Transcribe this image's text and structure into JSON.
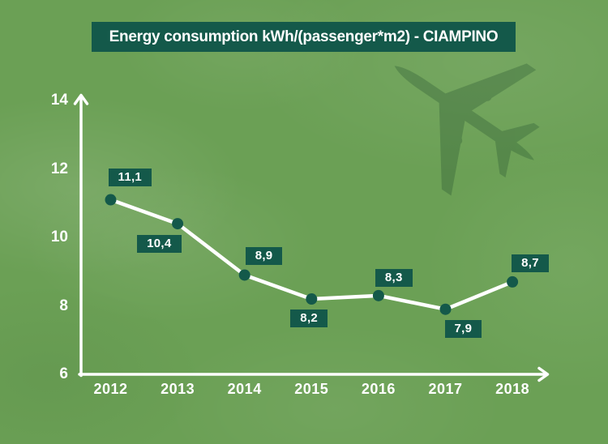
{
  "title_bar": {
    "text": "Energy consumption kWh/(passenger*m2)  - CIAMPINO"
  },
  "colors": {
    "background": "#6BA055",
    "accent_dark_green": "#14594A",
    "line_white": "#FFFFFF",
    "text_white": "#FFFFFF"
  },
  "decorations": {
    "airplane": "airplane-silhouette"
  },
  "chart_data": {
    "type": "line",
    "title": "Energy consumption kWh/(passenger*m2)  - CIAMPINO",
    "categories": [
      "2012",
      "2013",
      "2014",
      "2015",
      "2016",
      "2017",
      "2018"
    ],
    "values": [
      11.1,
      10.4,
      8.9,
      8.2,
      8.3,
      7.9,
      8.7
    ],
    "point_labels": [
      "11,1",
      "10,4",
      "8,9",
      "8,2",
      "8,3",
      "7,9",
      "8,7"
    ],
    "label_positions": [
      "above",
      "below",
      "above",
      "below",
      "above",
      "below",
      "above"
    ],
    "xlabel": "",
    "ylabel": "",
    "ylim": [
      6,
      14
    ],
    "yticks": [
      6,
      8,
      10,
      12,
      14
    ],
    "grid": false,
    "legend": false,
    "line_color": "#FFFFFF",
    "marker_color": "#14594A",
    "label_box_color": "#14594A",
    "label_text_color": "#FFFFFF"
  }
}
